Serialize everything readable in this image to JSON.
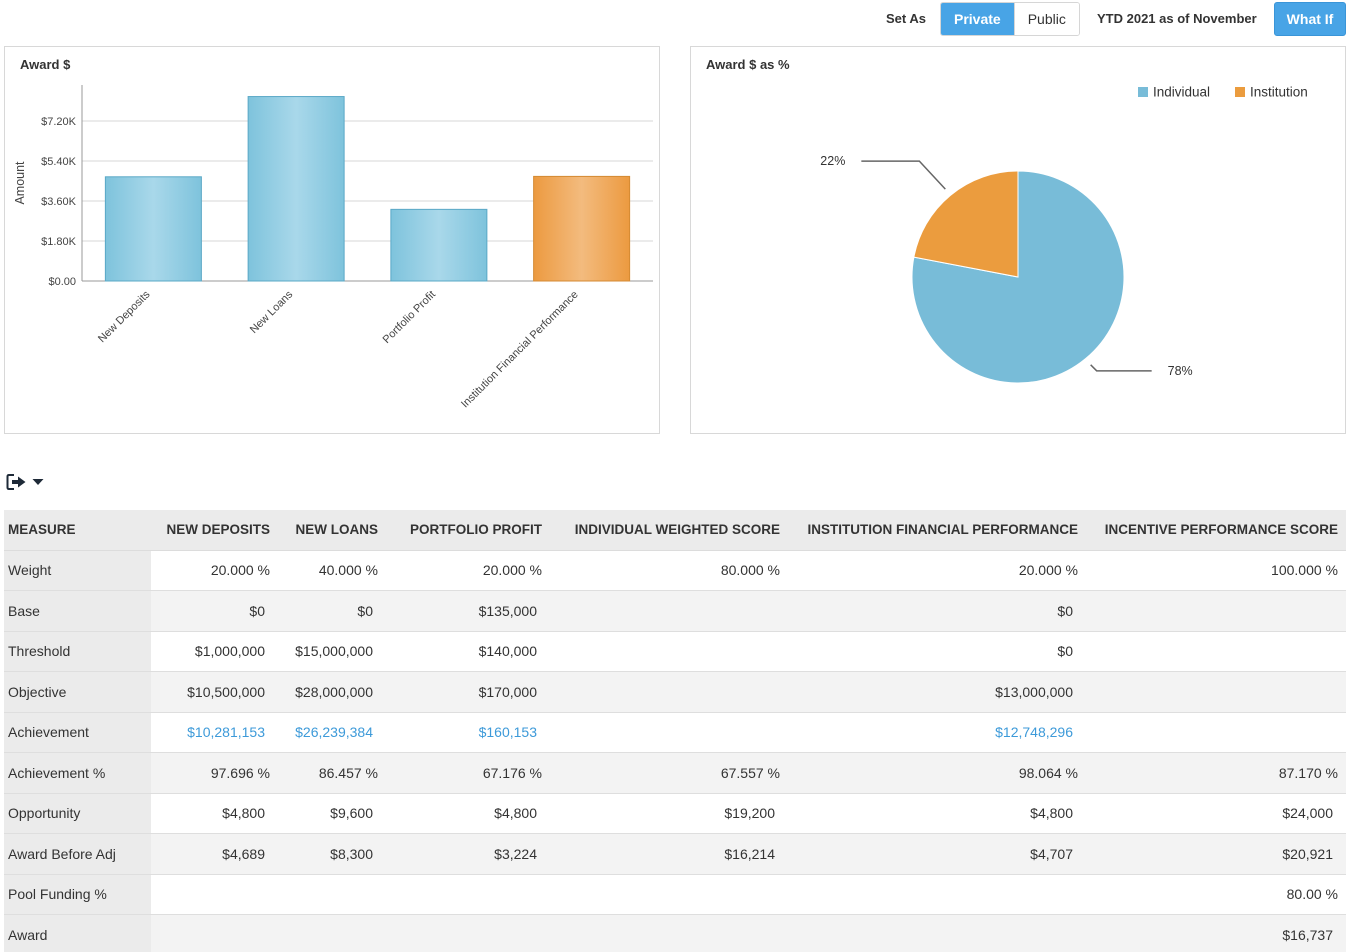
{
  "toolbar": {
    "set_as_label": "Set As",
    "private_label": "Private",
    "public_label": "Public",
    "period_label": "YTD 2021 as of November",
    "what_if_label": "What If"
  },
  "bar_panel": {
    "title": "Award $"
  },
  "pie_panel": {
    "title": "Award $ as %"
  },
  "colors": {
    "individual": "#78bcd8",
    "institution": "#eb9c3e",
    "accent": "#48a4e6",
    "link": "#3d9ad9"
  },
  "export_icon": "export-icon",
  "chart_data": [
    {
      "type": "bar",
      "title": "Award $",
      "ylabel": "Amount",
      "xlabel": "",
      "categories": [
        "New Deposits",
        "New Loans",
        "Portfolio Profit",
        "Institution Financial Performance"
      ],
      "values": [
        4689,
        8300,
        3224,
        4707
      ],
      "series_colors": [
        "individual",
        "individual",
        "individual",
        "institution"
      ],
      "yticks": [
        0,
        1800,
        3600,
        5400,
        7200
      ],
      "ytick_labels": [
        "$0.00",
        "$1.80K",
        "$3.60K",
        "$5.40K",
        "$7.20K"
      ],
      "ylim": [
        0,
        9000
      ],
      "grid": true
    },
    {
      "type": "pie",
      "title": "Award $ as %",
      "legend": [
        "Individual",
        "Institution"
      ],
      "legend_position": "top-right",
      "slices": [
        {
          "name": "Individual",
          "value": 78,
          "label": "78%"
        },
        {
          "name": "Institution",
          "value": 22,
          "label": "22%"
        }
      ]
    }
  ],
  "table": {
    "headers": [
      "MEASURE",
      "NEW DEPOSITS",
      "NEW LOANS",
      "PORTFOLIO PROFIT",
      "INDIVIDUAL WEIGHTED SCORE",
      "INSTITUTION FINANCIAL PERFORMANCE",
      "INCENTIVE PERFORMANCE SCORE"
    ],
    "rows": [
      {
        "measure": "Weight",
        "cells": [
          "20.000 %",
          "40.000 %",
          "20.000 %",
          "80.000 %",
          "20.000 %",
          "100.000 %"
        ]
      },
      {
        "measure": "Base",
        "cells": [
          "$0",
          "$0",
          "$135,000",
          "",
          "$0",
          ""
        ]
      },
      {
        "measure": "Threshold",
        "cells": [
          "$1,000,000",
          "$15,000,000",
          "$140,000",
          "",
          "$0",
          ""
        ]
      },
      {
        "measure": "Objective",
        "cells": [
          "$10,500,000",
          "$28,000,000",
          "$170,000",
          "",
          "$13,000,000",
          ""
        ]
      },
      {
        "measure": "Achievement",
        "cells": [
          "$10,281,153",
          "$26,239,384",
          "$160,153",
          "",
          "$12,748,296",
          ""
        ],
        "links": true
      },
      {
        "measure": "Achievement %",
        "cells": [
          "97.696 %",
          "86.457 %",
          "67.176 %",
          "67.557 %",
          "98.064 %",
          "87.170 %"
        ]
      },
      {
        "measure": "Opportunity",
        "cells": [
          "$4,800",
          "$9,600",
          "$4,800",
          "$19,200",
          "$4,800",
          "$24,000"
        ]
      },
      {
        "measure": "Award Before Adj",
        "cells": [
          "$4,689",
          "$8,300",
          "$3,224",
          "$16,214",
          "$4,707",
          "$20,921"
        ]
      },
      {
        "measure": "Pool Funding %",
        "cells": [
          "",
          "",
          "",
          "",
          "",
          "80.00 %"
        ]
      },
      {
        "measure": "Award",
        "cells": [
          "",
          "",
          "",
          "",
          "",
          "$16,737"
        ]
      }
    ]
  }
}
